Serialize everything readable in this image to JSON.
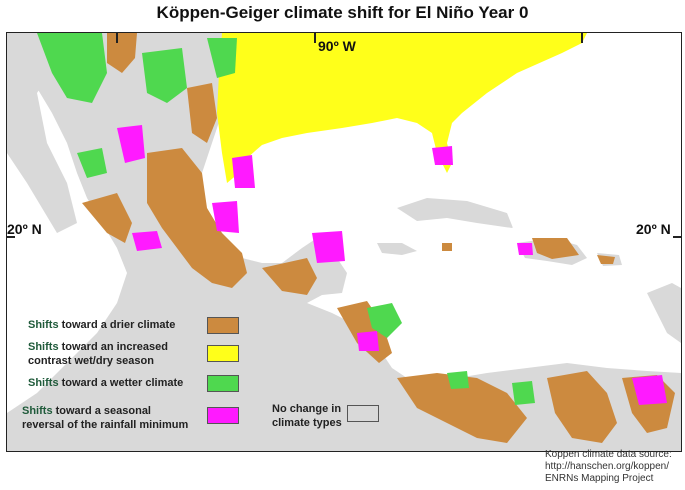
{
  "title": "Köppen-Geiger climate shift for El Niño Year 0",
  "coords": {
    "top_meridian": "90º W",
    "left_parallel": "20º N",
    "right_parallel": "20º N"
  },
  "legend": [
    {
      "keyword": "Shifts",
      "text": " toward a drier climate",
      "text2": "",
      "color": "#cc8a3f"
    },
    {
      "keyword": "Shifts",
      "text": " toward an increased",
      "text2": "contrast wet/dry season",
      "color": "#ffff1a"
    },
    {
      "keyword": "Shifts",
      "text": " toward a wetter climate",
      "text2": "",
      "color": "#4fd84f"
    },
    {
      "keyword": "Shifts",
      "text": " toward  a  seasonal",
      "text2": "reversal of the rainfall minimum",
      "color": "#ff1aff"
    }
  ],
  "no_change": {
    "text": "No change in",
    "text2": "climate types",
    "color": "#d9d9d9"
  },
  "source": {
    "line1": "Koppen climate data source:",
    "line2": "http://hanschen.org/koppen/",
    "line3": "ENRNs Mapping Project"
  },
  "colors": {
    "drier": "#cc8a3f",
    "contrast": "#ffff1a",
    "wetter": "#4fd84f",
    "reversal": "#ff1aff",
    "no_change": "#d9d9d9"
  }
}
